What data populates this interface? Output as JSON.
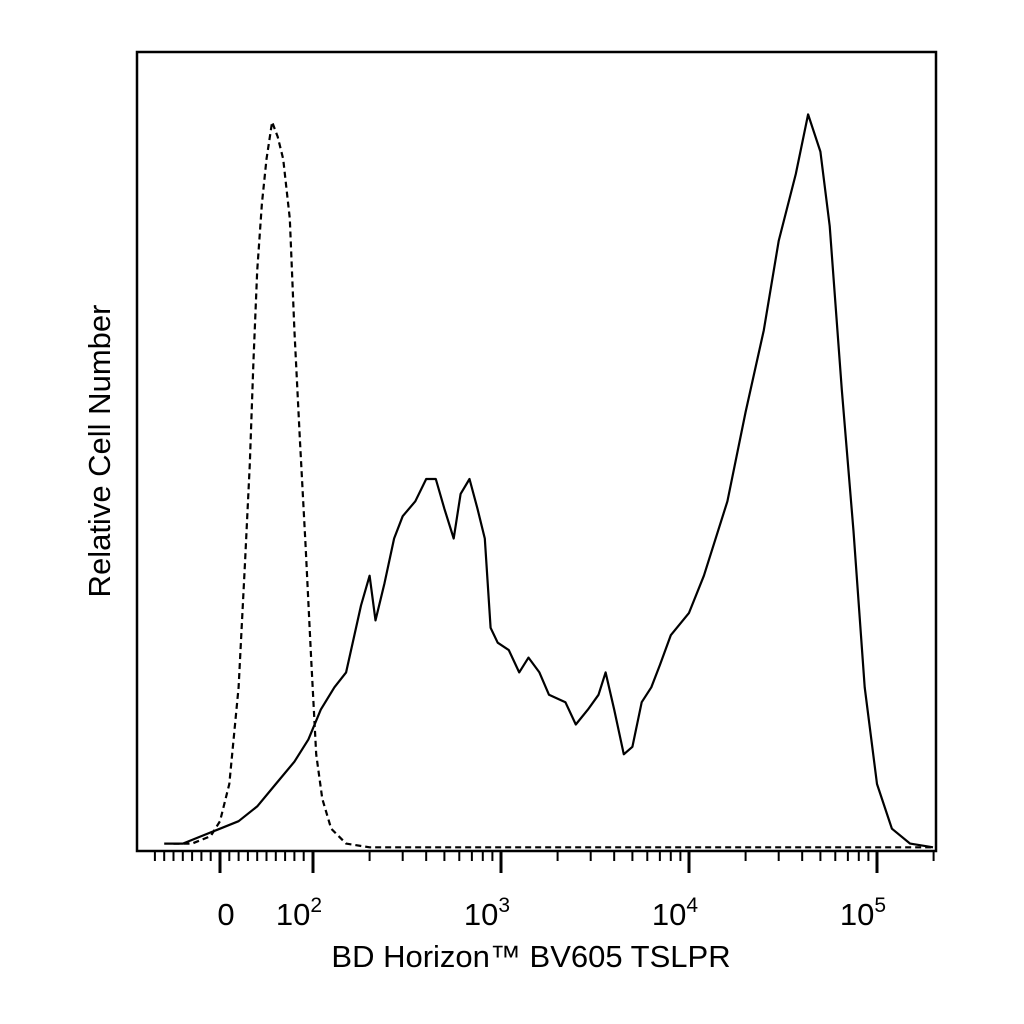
{
  "chart_data": {
    "type": "line",
    "chart_kind": "flow cytometry histogram",
    "xlabel": "BD Horizon™ BV605 TSLPR",
    "ylabel": "Relative Cell Number",
    "x_scale": "biexponential",
    "x_range": [
      -60,
      250000
    ],
    "y_range": [
      0,
      1
    ],
    "grid": false,
    "legend": "none",
    "x_tick_labels": [
      {
        "value": 0,
        "base": "0",
        "exp": ""
      },
      {
        "value": 100,
        "base": "10",
        "exp": "2"
      },
      {
        "value": 1000,
        "base": "10",
        "exp": "3"
      },
      {
        "value": 10000,
        "base": "10",
        "exp": "4"
      },
      {
        "value": 100000,
        "base": "10",
        "exp": "5"
      }
    ],
    "series": [
      {
        "style": "dashed",
        "color": "#000000",
        "points": [
          [
            -50,
            0.01
          ],
          [
            -30,
            0.01
          ],
          [
            -10,
            0.02
          ],
          [
            0,
            0.04
          ],
          [
            10,
            0.09
          ],
          [
            20,
            0.22
          ],
          [
            27,
            0.39
          ],
          [
            32,
            0.52
          ],
          [
            36,
            0.66
          ],
          [
            40,
            0.78
          ],
          [
            45,
            0.87
          ],
          [
            50,
            0.93
          ],
          [
            56,
            0.98
          ],
          [
            62,
            0.96
          ],
          [
            68,
            0.93
          ],
          [
            75,
            0.85
          ],
          [
            80,
            0.7
          ],
          [
            86,
            0.55
          ],
          [
            92,
            0.41
          ],
          [
            98,
            0.26
          ],
          [
            104,
            0.13
          ],
          [
            112,
            0.07
          ],
          [
            125,
            0.03
          ],
          [
            150,
            0.01
          ],
          [
            200,
            0.005
          ],
          [
            250000,
            0.005
          ]
        ]
      },
      {
        "style": "solid",
        "color": "#000000",
        "points": [
          [
            -60,
            0.01
          ],
          [
            -40,
            0.01
          ],
          [
            -20,
            0.02
          ],
          [
            0,
            0.03
          ],
          [
            20,
            0.04
          ],
          [
            40,
            0.06
          ],
          [
            60,
            0.09
          ],
          [
            80,
            0.12
          ],
          [
            95,
            0.15
          ],
          [
            110,
            0.19
          ],
          [
            130,
            0.22
          ],
          [
            150,
            0.24
          ],
          [
            180,
            0.33
          ],
          [
            200,
            0.37
          ],
          [
            215,
            0.31
          ],
          [
            240,
            0.36
          ],
          [
            270,
            0.42
          ],
          [
            300,
            0.45
          ],
          [
            350,
            0.47
          ],
          [
            400,
            0.5
          ],
          [
            450,
            0.5
          ],
          [
            500,
            0.46
          ],
          [
            560,
            0.42
          ],
          [
            610,
            0.48
          ],
          [
            680,
            0.5
          ],
          [
            750,
            0.46
          ],
          [
            820,
            0.42
          ],
          [
            880,
            0.3
          ],
          [
            960,
            0.28
          ],
          [
            1100,
            0.27
          ],
          [
            1250,
            0.24
          ],
          [
            1400,
            0.26
          ],
          [
            1600,
            0.24
          ],
          [
            1800,
            0.21
          ],
          [
            2200,
            0.2
          ],
          [
            2500,
            0.17
          ],
          [
            2900,
            0.19
          ],
          [
            3300,
            0.21
          ],
          [
            3600,
            0.24
          ],
          [
            4000,
            0.19
          ],
          [
            4500,
            0.13
          ],
          [
            5000,
            0.14
          ],
          [
            5600,
            0.2
          ],
          [
            6300,
            0.22
          ],
          [
            7000,
            0.25
          ],
          [
            8000,
            0.29
          ],
          [
            10000,
            0.32
          ],
          [
            12000,
            0.37
          ],
          [
            16000,
            0.47
          ],
          [
            20000,
            0.59
          ],
          [
            25000,
            0.7
          ],
          [
            30000,
            0.82
          ],
          [
            37000,
            0.91
          ],
          [
            43000,
            0.99
          ],
          [
            50000,
            0.94
          ],
          [
            56000,
            0.84
          ],
          [
            65000,
            0.62
          ],
          [
            75000,
            0.43
          ],
          [
            86000,
            0.22
          ],
          [
            100000,
            0.09
          ],
          [
            120000,
            0.03
          ],
          [
            150000,
            0.01
          ],
          [
            250000,
            0.005
          ]
        ]
      }
    ]
  }
}
